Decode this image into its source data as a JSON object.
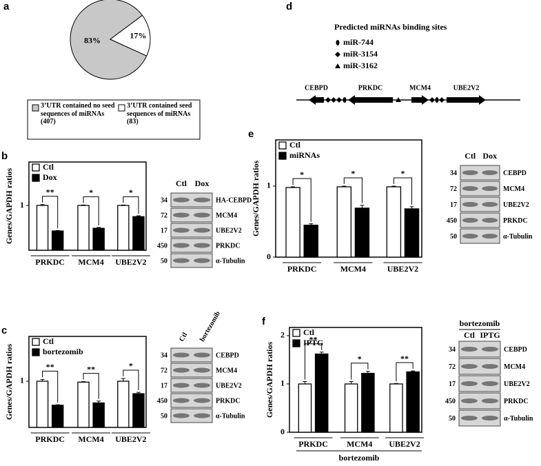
{
  "chart_data": [
    {
      "type": "pie",
      "panel": "a",
      "categories": [
        "3’UTR contained no seed sequences of miRNAs (407)",
        "3’UTR contained seed sequences of miRNAs (83)"
      ],
      "values": [
        83,
        17
      ],
      "value_labels": [
        "83%",
        "17%"
      ],
      "colors": [
        "#c8c8c8",
        "#ffffff"
      ]
    },
    {
      "type": "bar",
      "panel": "b",
      "ylabel": "Genes/GAPDH ratios",
      "categories": [
        "PRKDC",
        "MCM4",
        "UBE2V2"
      ],
      "series": [
        {
          "name": "Ctl",
          "color": "#ffffff",
          "values": [
            1,
            1,
            1
          ],
          "errors": [
            0.02,
            0.01,
            0.01
          ]
        },
        {
          "name": "Dox",
          "color": "#000000",
          "values": [
            0.43,
            0.49,
            0.75
          ],
          "errors": [
            0.01,
            0.02,
            0.02
          ]
        }
      ],
      "annotations": [
        "**",
        "*",
        "*"
      ],
      "ylim": [
        0,
        1.97
      ],
      "yticks": [
        1
      ]
    },
    {
      "type": "bar",
      "panel": "c",
      "ylabel": "Genes/GAPDH ratios",
      "categories": [
        "PRKDC",
        "MCM4",
        "UBE2V2"
      ],
      "series": [
        {
          "name": "Ctl",
          "color": "#ffffff",
          "values": [
            1,
            0.98,
            1
          ],
          "errors": [
            0.04,
            0.01,
            0.06
          ]
        },
        {
          "name": "bortezomib",
          "color": "#000000",
          "values": [
            0.48,
            0.53,
            0.73
          ],
          "errors": [
            0.01,
            0.04,
            0.03
          ]
        }
      ],
      "annotations": [
        "**",
        "**",
        "*"
      ],
      "ylim": [
        0,
        1.97
      ],
      "yticks": [
        1
      ]
    },
    {
      "type": "bar",
      "panel": "e",
      "ylabel": "Genes/GAPDH ratios",
      "categories": [
        "PRKDC",
        "MCM4",
        "UBE2V2"
      ],
      "series": [
        {
          "name": "Ctl",
          "color": "#ffffff",
          "values": [
            0.98,
            0.99,
            0.99
          ],
          "errors": [
            0.01,
            0.01,
            0.01
          ]
        },
        {
          "name": "miRNAs",
          "color": "#000000",
          "values": [
            0.45,
            0.69,
            0.68
          ],
          "errors": [
            0.02,
            0.04,
            0.03
          ]
        }
      ],
      "annotations": [
        "*",
        "*",
        "*"
      ],
      "ylim": [
        0,
        1.65
      ],
      "yticks": [
        0,
        1
      ]
    },
    {
      "type": "bar",
      "panel": "f",
      "ylabel": "Genes/GAPDH ratios",
      "xlabel": "bortezomib",
      "categories": [
        "PRKDC",
        "MCM4",
        "UBE2V2"
      ],
      "series": [
        {
          "name": "Ctl",
          "color": "#ffffff",
          "values": [
            1,
            1,
            1
          ],
          "errors": [
            0.05,
            0.05,
            0.01
          ]
        },
        {
          "name": "IPTG",
          "color": "#000000",
          "values": [
            1.62,
            1.22,
            1.25
          ],
          "errors": [
            0.04,
            0.04,
            0.02
          ]
        }
      ],
      "annotations": [
        "**",
        "*",
        "**"
      ],
      "ylim": [
        0,
        2.17
      ],
      "yticks": [
        0,
        1,
        2
      ]
    }
  ],
  "diagram": {
    "panel": "d",
    "title": "Predicted miRNAs binding sites",
    "legend": [
      "miR-744",
      "miR-3154",
      "miR-3162"
    ],
    "genes": [
      "CEBPD",
      "PRKDC",
      "MCM4",
      "UBE2V2"
    ]
  },
  "blots": [
    {
      "columns": [
        "Ctl",
        "Dox"
      ],
      "rows": [
        {
          "mw": "34",
          "label": "HA-CEBPD"
        },
        {
          "mw": "72",
          "label": "MCM4"
        },
        {
          "mw": "17",
          "label": "UBE2V2"
        },
        {
          "mw": "450",
          "label": "PRKDC"
        },
        {
          "mw": "50",
          "label": "α-Tubulin"
        }
      ]
    },
    {
      "columns": [
        "Ctl",
        "bortezomib"
      ],
      "rows": [
        {
          "mw": "34",
          "label": "CEBPD"
        },
        {
          "mw": "72",
          "label": "MCM4"
        },
        {
          "mw": "17",
          "label": "UBE2V2"
        },
        {
          "mw": "450",
          "label": "PRKDC"
        },
        {
          "mw": "50",
          "label": "α-Tubulin"
        }
      ]
    },
    {
      "columns": [
        "Ctl",
        "Dox"
      ],
      "rows": [
        {
          "mw": "34",
          "label": "CEBPD"
        },
        {
          "mw": "72",
          "label": "MCM4"
        },
        {
          "mw": "17",
          "label": "UBE2V2"
        },
        {
          "mw": "450",
          "label": "PRKDC"
        },
        {
          "mw": "50",
          "label": "α-Tubulin"
        }
      ]
    },
    {
      "header": "bortezomib",
      "columns": [
        "Ctl",
        "IPTG"
      ],
      "rows": [
        {
          "mw": "34",
          "label": "CEBPD"
        },
        {
          "mw": "72",
          "label": "MCM4"
        },
        {
          "mw": "17",
          "label": "UBE2V2"
        },
        {
          "mw": "450",
          "label": "PRKDC"
        },
        {
          "mw": "50",
          "label": "α-Tubulin"
        }
      ]
    }
  ]
}
